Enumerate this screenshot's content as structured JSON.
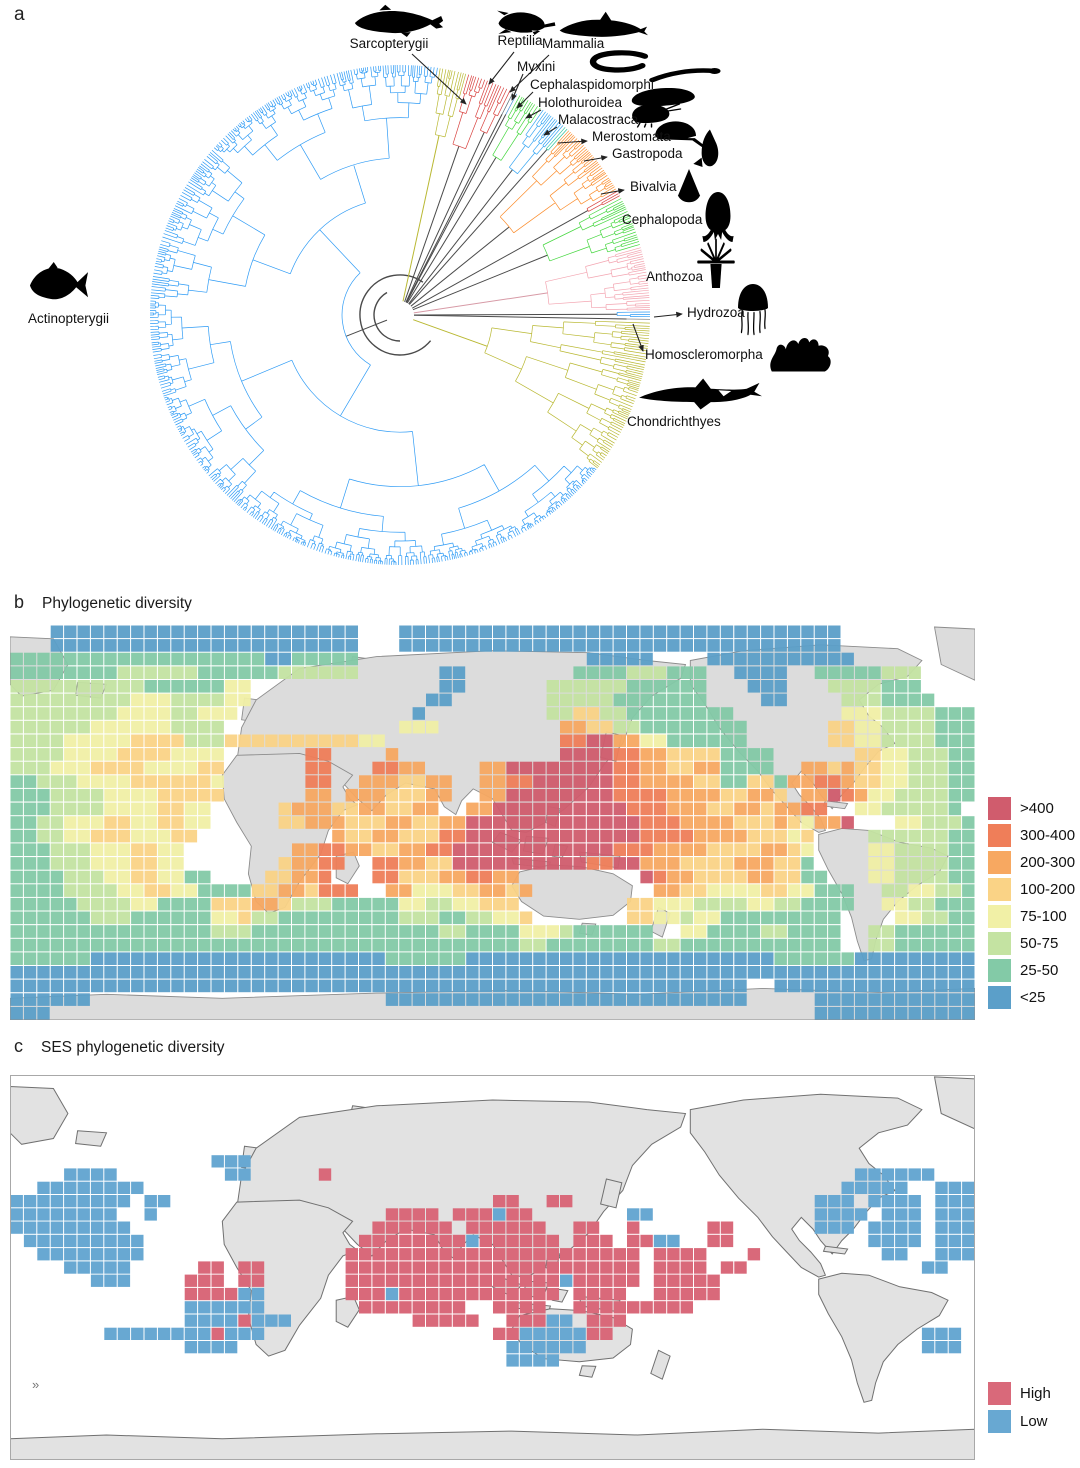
{
  "panels": {
    "a": {
      "label": "a"
    },
    "b": {
      "label": "b",
      "title": "Phylogenetic diversity"
    },
    "c": {
      "label": "c",
      "title": "SES phylogenetic diversity"
    }
  },
  "chart_data": [
    {
      "type": "circular_phylogenetic_tree",
      "title": "",
      "clades": [
        {
          "name": "Actinopterygii",
          "color": "#2e9bf5",
          "angle_start": 128,
          "angle_end": 369,
          "icon": "ray-finned-fish-icon"
        },
        {
          "name": "Sarcopterygii",
          "color": "#b9b832",
          "angle_start": 9,
          "angle_end": 15.5,
          "icon": "coelacanth-icon"
        },
        {
          "name": "Reptilia",
          "color": "#d8413e",
          "angle_start": 15.5,
          "angle_end": 23,
          "icon": "sea-turtle-icon"
        },
        {
          "name": "Mammalia",
          "color": "#d8413e",
          "angle_start": 23,
          "angle_end": 26.5,
          "icon": "dolphin-icon"
        },
        {
          "name": "Myxini",
          "color": "#5a6b74",
          "angle_start": 26.5,
          "angle_end": 27.4,
          "icon": "hagfish-icon"
        },
        {
          "name": "Cephalaspidomorphi",
          "color": "#4a90d9",
          "angle_start": 27.4,
          "angle_end": 28.2,
          "icon": "lamprey-icon"
        },
        {
          "name": "Holothuroidea",
          "color": "#45d73f",
          "angle_start": 28.2,
          "angle_end": 34.5,
          "icon": "sea-cucumber-icon"
        },
        {
          "name": "Malacostraca",
          "color": "#35a5f2",
          "angle_start": 34.5,
          "angle_end": 41,
          "icon": "shrimp-icon"
        },
        {
          "name": "Merostomata",
          "color": "#2ec4a0",
          "angle_start": 41,
          "angle_end": 42.2,
          "icon": "horseshoe-crab-icon"
        },
        {
          "name": "Gastropoda",
          "color": "#fb8c2b",
          "angle_start": 42.2,
          "angle_end": 60,
          "icon": "snail-icon"
        },
        {
          "name": "Bivalvia",
          "color": "#d8413e",
          "angle_start": 60,
          "angle_end": 61.8,
          "icon": "clam-icon"
        },
        {
          "name": "Cephalopoda",
          "color": "#45d73f",
          "angle_start": 61.8,
          "angle_end": 74,
          "icon": "octopus-icon"
        },
        {
          "name": "Anthozoa",
          "color": "#f3a5b1",
          "angle_start": 74,
          "angle_end": 89,
          "icon": "sea-anemone-icon"
        },
        {
          "name": "Hydrozoa",
          "color": "#2e9bf5",
          "angle_start": 89,
          "angle_end": 90.6,
          "icon": "jellyfish-icon"
        },
        {
          "name": "Homoscleromorpha",
          "color": "#8a8a8a",
          "angle_start": 90.6,
          "angle_end": 91.4,
          "icon": "sponge-icon"
        },
        {
          "name": "Chondrichthyes",
          "color": "#b9b832",
          "angle_start": 91.4,
          "angle_end": 128,
          "icon": "shark-icon"
        }
      ]
    },
    {
      "type": "heatmap",
      "title": "Phylogenetic diversity",
      "legend": [
        {
          "label": ">400",
          "color": "#d05c6d",
          "code": "h"
        },
        {
          "label": "300-400",
          "color": "#ef7e59",
          "code": "g"
        },
        {
          "label": "200-300",
          "color": "#f7a861",
          "code": "f"
        },
        {
          "label": "100-200",
          "color": "#fad386",
          "code": "e"
        },
        {
          "label": "75-100",
          "color": "#f1f0a6",
          "code": "d"
        },
        {
          "label": "50-75",
          "color": "#c4e3a2",
          "code": "c"
        },
        {
          "label": "25-50",
          "color": "#83caa7",
          "code": "b"
        },
        {
          "label": "<25",
          "color": "#5b9fc9",
          "code": "a"
        }
      ],
      "grid_cols": 72,
      "rows": [
        "...aaaaaaaaaaaaaaaaaaaaaaa...aaaaaaaaaaaaaaaaaaaaaaaaaaaaaaaaa..........",
        "...aaaaaaaaaaaaaaaaaaaaaaa...aaaaaaaaaaaaaaaaaaaaaaaaaaaaaaaaa..........",
        "bbbbbbbbbbbbbbbbbbbaabbbbb.................aaaaa....aaaaaaaaaaa.........",
        "bbbbbbbbccccccbbbbbbcccccc......aa........bbbbcccbbb..aaaa..bbbbbccc....",
        "ccccccccccbbbbbbdd..............aa......ccccccbbbbbb...aaa...ccccbbb....",
        "cccccccccdddccccdd.............aa.......cccccbbbbbbb....aa....cccbbbb...",
        "ccccccccddddccddd.............a.........cceeccbbbbbbbb........dddccccbbb",
        "ccccccddddddcccc.............ddd.........ffeeccbbbbbbbb......eeddccccbbb",
        "ccccdddddeeeeccceeeeeeeeeedd.............gghhffddbbbbbb......eeddccccbbb",
        "ccccddddeeeedddd......gg....f............hhhhggffeeeebbbb......eeddcccbb",
        "cccdddeeeeddddee......gg...ggff....ffhhhhhhhhggffeeffbbbb..ffefeeddcccbb",
        "bbcccddddeeeeeed......gg..fffeeff..ffgghhhhhhggffffeebbeebffggfeeddcccbb",
        "bbbccccddddeeeee......ff.fffeeeff..ffhhhhhhhhggggffffeeffe.ffhgfddccccbb",
        "bbbccccddddeedd.....efffeeffeeff..ffhhhhhhhhhhgggfffeeffeffgg..ddcccccb",
        "bbccdddeeddeedd.....eefffeeeffeeffhhhhhhhhhhhhhgggffffeeefedffh...ddcccb",
        "bbccddeeedddee..........feeffeeegghhhhhhhhhhhhhggggffffeeede....ccccccbb",
        "bbbcccdddeedd........ffggffeeffgghhhhhhhhhhhhgggffffeeeeffed....ddccccbb",
        "bbbcccdddeedd.......effgg..ggffeehhhhhhhhhhgghhfffeeeefffeeb....ddccccbb",
        "bbbbcccddeeddbb....eeffg...ggeeeffggff.........hgffeeeeffeebb...ddccccbb",
        "bbbbccccddeeddbbbbeeffeggg..ffdddeeffef.........ffeeddddeeddbbb..ccddccbb",
        "bbbbbccccddbbbbeeeffecccbbbbbddccddeee........eedddccccddccbbbb..ddccbbb",
        "bbbbbbcccbbbbbbddeccbbbbbbbbbcccbbccdde.......eeddcddbbbbbbbbb....ddccbb",
        "bbbbbbbbbbbbbbbcccbbbbbbbbbbbbbbccbbbbdddcbbbbbb..ddbbbbccbbbb..ccbbbbbb",
        "bbbbbbbbbbbbbbbbbbbbbbbbbbbbbbbbbbbbbbccbbbbbbbbccbbbbbbbbbbbb..ccbbbbbb",
        "bbbbbbaaaaaaaaaaaaaaaaaaaaaabbbbbbaaaaaaaaaaaaaaaaaaaaaaabbbbbbaaaaaaaaa",
        "aaaaaaaaaaaaaaaaaaaaaaaaaaaaaaaaaaaaaaaaaaaaaaaaaaaaaaaaaaaaaaaaaaaaaaaa",
        "aaaaaaaaaaaaaaaaaaaaaaaaaaaaaaaaaaaaaaaaaaaaaaaaaaaaaaa..aaaaaaaaaaaaaaa",
        "aaaaaa......................aaaaaaaaaaaaaaaaaaaaaaaaaaa.....aaaaaaaaaaaa",
        "aaa.........................................................aaaaaaaaaaaa"
      ]
    },
    {
      "type": "heatmap",
      "title": "SES phylogenetic diversity",
      "legend": [
        {
          "label": "High",
          "color": "#d9697a",
          "code": "H"
        },
        {
          "label": "Low",
          "color": "#68a8d2",
          "code": "L"
        }
      ],
      "grid_cols": 72,
      "artifact": "»",
      "rows": [
        "........................................................................",
        "........................................................................",
        "........................................................................",
        "........................................................................",
        "........................................................................",
        "........................................................................",
        "...............LLL......................................................",
        "....LLLL........LL.....H.......................................LLLLLL...",
        "..LLLLLLLL....................................................LLLLL..LLL",
        "LLLLLLLLL.LL........................HH..HH..................LLL.LLLL.LLL",
        "LLLLLLLL..L.................HHHH.HHHLHH.......LL............LLLL.LLL.LLL",
        "LLLLLLLLL..................HHHHHH.HHHHHH..HH..H.....HH......LLL.LLLL.LLL",
        ".LLLLLLLLL................HHHHHHHHLHHHHHH.HHH.HHLL..HH..........LLLL.LLL",
        "..LLLLLLLL...............HHHHHHHHHHHHHHHHHHHHHH.HHHH...H.........LL..LLL",
        "....LLLLL.....HH.HH......HHHHHHHHHHHHHHHHHHHHHH.HHHH.HH.............LL..",
        "......LLL....HHH.HH......HHHHHHHHHHHHHHHHLHHHHH.HHHHH...................",
        ".............HHHHLL......HHHLHHHHHHHHHHHH.HHHH..HHHHH...................",
        ".............LLLLLL.......HHHHHHHH..HHHH..HHHHHHHHH.....................",
        ".............LLLLHLLL.........HHHHH..HHHLL.HHH..........................",
        ".......LLLLLLLLHLLL.................HHLLLLLHH.......................LLL.",
        ".............LLLL....................LLLLLL.........................LLL.",
        ".....................................LLLL...............................",
        "........................................................................",
        "........................................................................",
        "........................................................................",
        "........................................................................",
        "........................................................................",
        "........................................................................",
        "........................................................................"
      ]
    }
  ]
}
